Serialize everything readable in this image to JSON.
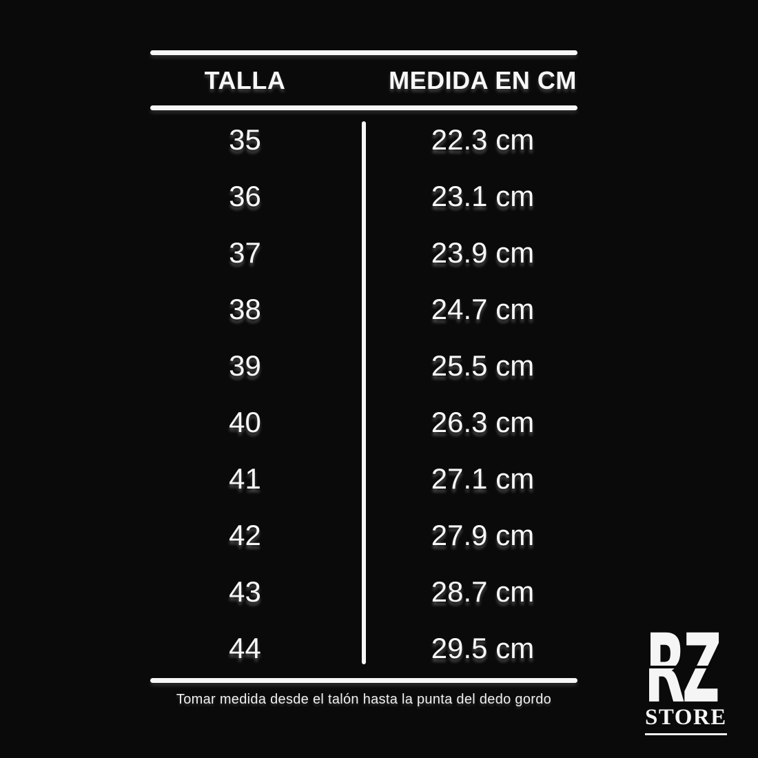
{
  "background": "#0a0a0a",
  "accent_white": "#f7f7f7",
  "chart_data": {
    "type": "table",
    "columns": [
      "TALLA",
      "MEDIDA EN CM"
    ],
    "rows": [
      [
        "35",
        "22.3 cm"
      ],
      [
        "36",
        "23.1 cm"
      ],
      [
        "37",
        "23.9 cm"
      ],
      [
        "38",
        "24.7 cm"
      ],
      [
        "39",
        "25.5 cm"
      ],
      [
        "40",
        "26.3 cm"
      ],
      [
        "41",
        "27.1 cm"
      ],
      [
        "42",
        "27.9 cm"
      ],
      [
        "43",
        "28.7 cm"
      ],
      [
        "44",
        "29.5 cm"
      ]
    ],
    "note": "Tomar medida desde el talón hasta la punta del dedo gordo"
  },
  "table": {
    "headers": [
      {
        "label": "TALLA"
      },
      {
        "label": "MEDIDA EN CM"
      }
    ],
    "rows": [
      {
        "talla": "35",
        "medida": "22.3 cm"
      },
      {
        "talla": "36",
        "medida": "23.1 cm"
      },
      {
        "talla": "37",
        "medida": "23.9 cm"
      },
      {
        "talla": "38",
        "medida": "24.7 cm"
      },
      {
        "talla": "39",
        "medida": "25.5 cm"
      },
      {
        "talla": "40",
        "medida": "26.3 cm"
      },
      {
        "talla": "41",
        "medida": "27.1 cm"
      },
      {
        "talla": "42",
        "medida": "27.9 cm"
      },
      {
        "talla": "43",
        "medida": "28.7 cm"
      },
      {
        "talla": "44",
        "medida": "29.5 cm"
      }
    ]
  },
  "footer": {
    "note": "Tomar medida desde el talón hasta la punta del dedo gordo"
  },
  "logo": {
    "monogram": "RZ",
    "store": "STORE"
  }
}
